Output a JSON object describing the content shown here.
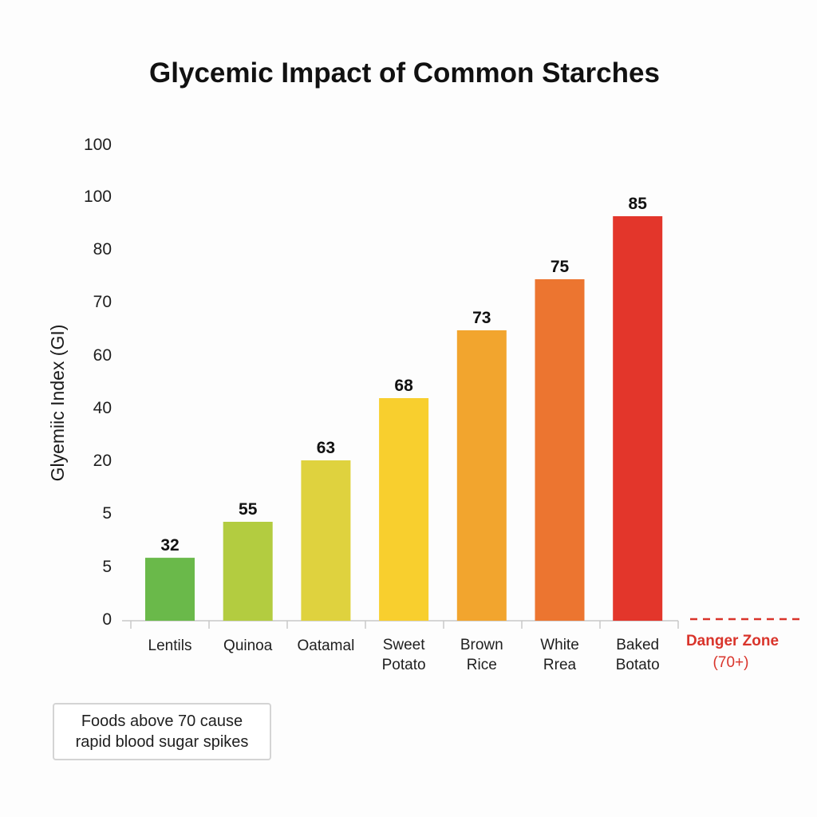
{
  "chart_data": {
    "type": "bar",
    "title": "Glycemic Impact of Common Starches",
    "ylabel": "Glyemiic Index (GI)",
    "xlabel": "",
    "y_tick_labels": [
      "0",
      "5",
      "5",
      "20",
      "40",
      "60",
      "70",
      "80",
      "100",
      "100"
    ],
    "categories": [
      [
        "Lentils"
      ],
      [
        "Quinoa"
      ],
      [
        "Oatamal"
      ],
      [
        "Sweet",
        "Potato"
      ],
      [
        "Brown",
        "Rice"
      ],
      [
        "White",
        "Rrea"
      ],
      [
        "Baked",
        "Botato"
      ]
    ],
    "values": [
      32,
      55,
      63,
      68,
      73,
      75,
      85
    ],
    "data_labels": [
      "32",
      "55",
      "63",
      "68",
      "73",
      "75",
      "85"
    ],
    "bar_colors": [
      "#6ab94a",
      "#b3cc40",
      "#dfd23e",
      "#f8cf2e",
      "#f2a52e",
      "#ec7530",
      "#e3362b"
    ],
    "reference_line": {
      "label": [
        "Danger Zone",
        "(70+)"
      ],
      "color": "#d9342b",
      "style": "dashed"
    },
    "grid": false,
    "legend": "none"
  },
  "annotation": {
    "line1": "Foods above 70 cause",
    "line2": "rapid blood sugar spikes"
  }
}
